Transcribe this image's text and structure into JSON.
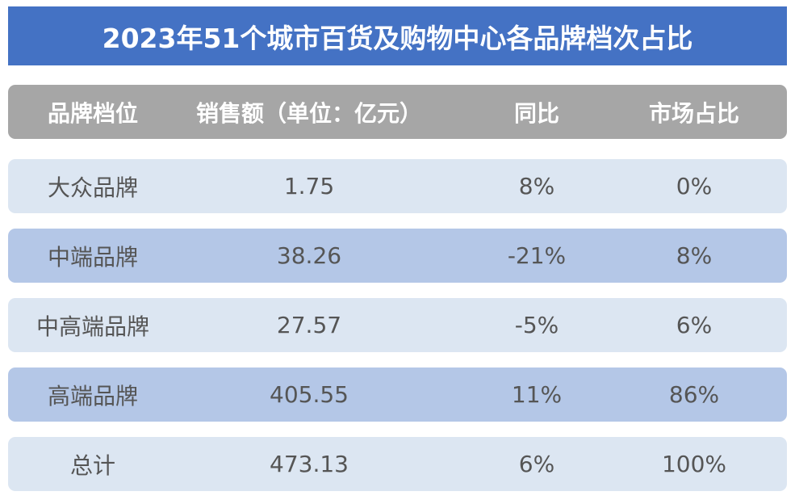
{
  "title": "2023年51个城市百货及购物中心各品牌档次占比",
  "table": {
    "header": [
      "品牌档位",
      "销售额（单位：亿元）",
      "同比",
      "市场占比"
    ],
    "rows": [
      [
        "大众品牌",
        "1.75",
        "8%",
        "0%"
      ],
      [
        "中端品牌",
        "38.26",
        "-21%",
        "8%"
      ],
      [
        "中高端品牌",
        "27.57",
        "-5%",
        "6%"
      ],
      [
        "高端品牌",
        "405.55",
        "11%",
        "86%"
      ],
      [
        "总计",
        "473.13",
        "6%",
        "100%"
      ]
    ]
  }
}
